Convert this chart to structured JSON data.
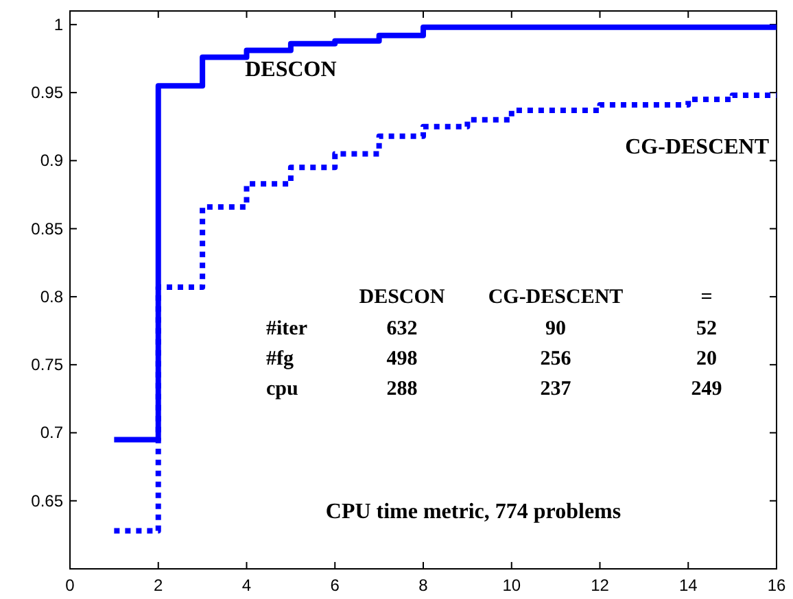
{
  "chart_data": {
    "type": "step",
    "xlim": [
      0,
      16
    ],
    "ylim": [
      0.6,
      1.01
    ],
    "xticks": [
      0,
      2,
      4,
      6,
      8,
      10,
      12,
      14,
      16
    ],
    "yticks": [
      0.65,
      0.7,
      0.75,
      0.8,
      0.85,
      0.9,
      0.95,
      1
    ],
    "grid": false,
    "series": [
      {
        "name": "DESCON",
        "color": "#0000ff",
        "line_style": "solid",
        "x": [
          1,
          2,
          3,
          4,
          5,
          6,
          7,
          8,
          16
        ],
        "values": [
          0.695,
          0.955,
          0.976,
          0.981,
          0.986,
          0.988,
          0.992,
          0.998,
          0.998
        ]
      },
      {
        "name": "CG-DESCENT",
        "color": "#0000ff",
        "line_style": "dotted",
        "x": [
          1,
          2,
          3,
          4,
          5,
          6,
          7,
          8,
          9,
          10,
          12,
          14,
          15,
          16
        ],
        "values": [
          0.628,
          0.807,
          0.866,
          0.883,
          0.895,
          0.905,
          0.918,
          0.925,
          0.93,
          0.937,
          0.941,
          0.945,
          0.948,
          0.948
        ]
      }
    ],
    "annotations": [
      "DESCON",
      "CG-DESCENT",
      "=",
      "#iter",
      "632",
      "90",
      "52",
      "#fg",
      "498",
      "256",
      "20",
      "cpu",
      "288",
      "237",
      "249",
      "CPU time metric, 774 problems"
    ]
  }
}
